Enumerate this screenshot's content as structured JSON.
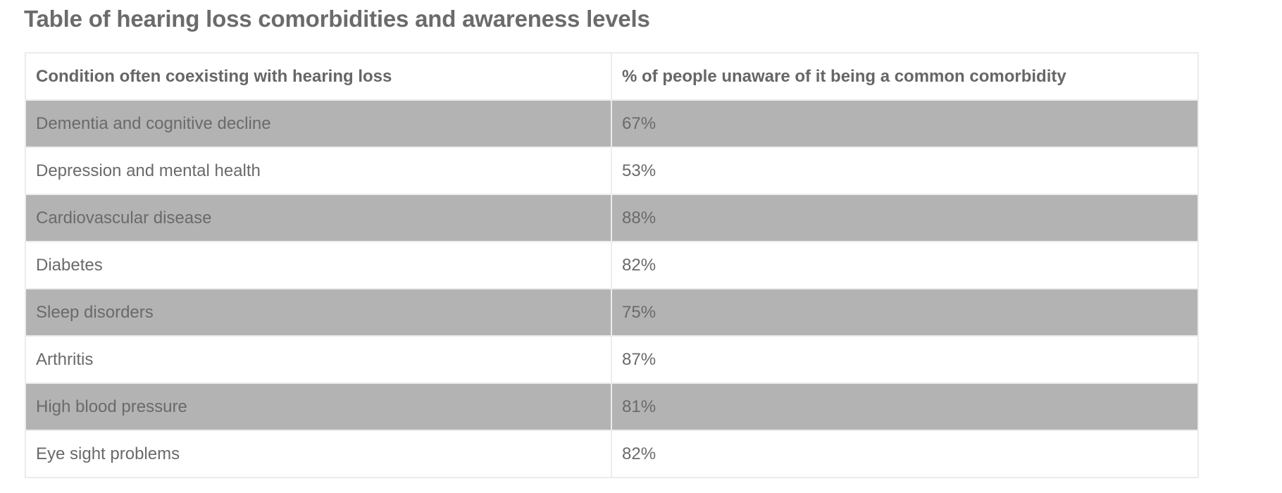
{
  "page": {
    "title": "Table of hearing loss comorbidities and awareness levels"
  },
  "table": {
    "headers": [
      "Condition often coexisting with hearing loss",
      "% of people unaware of it being a common comorbidity"
    ],
    "rows": [
      [
        "Dementia and cognitive decline",
        "67%"
      ],
      [
        "Depression and mental health",
        "53%"
      ],
      [
        "Cardiovascular disease",
        "88%"
      ],
      [
        "Diabetes",
        "82%"
      ],
      [
        "Sleep disorders",
        "75%"
      ],
      [
        "Arthritis",
        "87%"
      ],
      [
        "High blood pressure",
        "81%"
      ],
      [
        "Eye sight problems",
        "82%"
      ]
    ]
  },
  "colors": {
    "text": "#666666",
    "shaded_row": "#b3b3b3",
    "plain_row": "#ffffff",
    "border": "#ececec"
  }
}
